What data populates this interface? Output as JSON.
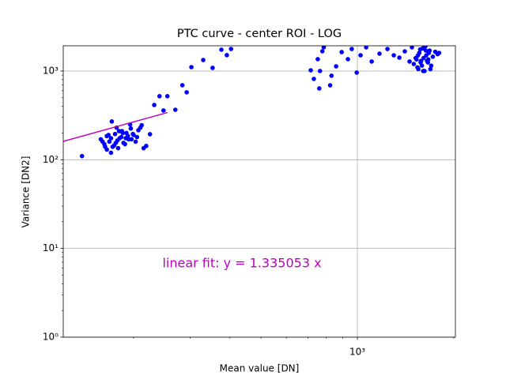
{
  "chart_data": {
    "type": "scatter",
    "title": "PTC curve - center ROI - LOG",
    "x_label": "Mean value [DN]",
    "y_label": "Variance [DN2]",
    "annotation": "linear fit: y = 1.335053 x",
    "log_x": true,
    "log_y": true,
    "grid": true,
    "xlim": [
      120.6,
      2023
    ],
    "ylim": [
      1,
      1925
    ],
    "xticks": [
      {
        "value": 1000,
        "label": "10³"
      }
    ],
    "yticks": [
      {
        "value": 1,
        "label": "10⁰"
      },
      {
        "value": 10,
        "label": "10¹"
      },
      {
        "value": 100,
        "label": "10²"
      },
      {
        "value": 1000,
        "label": "10³"
      }
    ],
    "xminorticks": [
      200,
      300,
      400,
      500,
      600,
      700,
      800,
      900,
      2000
    ],
    "yminorticks": [
      2,
      3,
      4,
      5,
      6,
      7,
      8,
      9,
      20,
      30,
      40,
      50,
      60,
      70,
      80,
      90,
      200,
      300,
      400,
      500,
      600,
      700,
      800,
      900
    ],
    "series": [
      {
        "color": "#0000ff",
        "x": [
          138,
          158,
          162,
          165,
          168,
          170,
          172,
          175,
          178,
          180,
          183,
          186,
          190,
          193,
          196,
          200,
          203,
          207,
          212,
          165,
          170,
          174,
          177,
          181,
          185,
          188,
          192,
          197,
          160,
          163,
          167,
          171,
          176,
          179,
          184,
          189,
          195,
          199,
          205,
          210,
          215,
          219,
          225,
          232,
          241,
          255,
          248,
          270,
          284,
          293,
          303,
          330,
          353,
          376,
          391,
          403,
          715,
          731,
          752,
          760,
          764,
          777,
          785,
          822,
          830,
          858,
          893,
          934,
          960,
          995,
          1023,
          1065,
          1108,
          1172,
          1241,
          1299,
          1352,
          1406,
          1455,
          1500,
          1520,
          1540,
          1560,
          1580,
          1600,
          1620,
          1640,
          1660,
          1680,
          1700,
          1720,
          1750,
          1780,
          1530,
          1550,
          1570,
          1590,
          1610,
          1630,
          1650,
          1670,
          1690,
          1545,
          1575,
          1605,
          1635,
          1665,
          1800,
          1480
        ],
        "y": [
          110,
          170,
          150,
          185,
          160,
          175,
          140,
          195,
          165,
          210,
          180,
          155,
          200,
          170,
          225,
          190,
          160,
          215,
          245,
          130,
          120,
          145,
          230,
          175,
          200,
          150,
          185,
          170,
          160,
          140,
          190,
          270,
          155,
          135,
          210,
          175,
          250,
          195,
          180,
          230,
          135,
          143,
          194,
          414,
          520,
          520,
          359,
          366,
          692,
          576,
          1107,
          1330,
          1085,
          1740,
          1510,
          1773,
          1020,
          815,
          1360,
          637,
          1000,
          1670,
          1850,
          690,
          885,
          1130,
          1635,
          1360,
          1773,
          960,
          1505,
          1850,
          1280,
          1570,
          1773,
          1505,
          1416,
          1665,
          1280,
          1200,
          1400,
          1100,
          1600,
          1300,
          1800,
          1000,
          1500,
          1250,
          1700,
          1150,
          1450,
          1650,
          1550,
          1350,
          1050,
          1750,
          1150,
          1400,
          1900,
          1300,
          1600,
          1050,
          1500,
          1250,
          1000,
          1700,
          1350,
          1600,
          1850
        ]
      },
      {
        "color": "#bf00bf",
        "x": [
          120.6,
          255
        ],
        "y": [
          161,
          340.4
        ]
      }
    ]
  }
}
